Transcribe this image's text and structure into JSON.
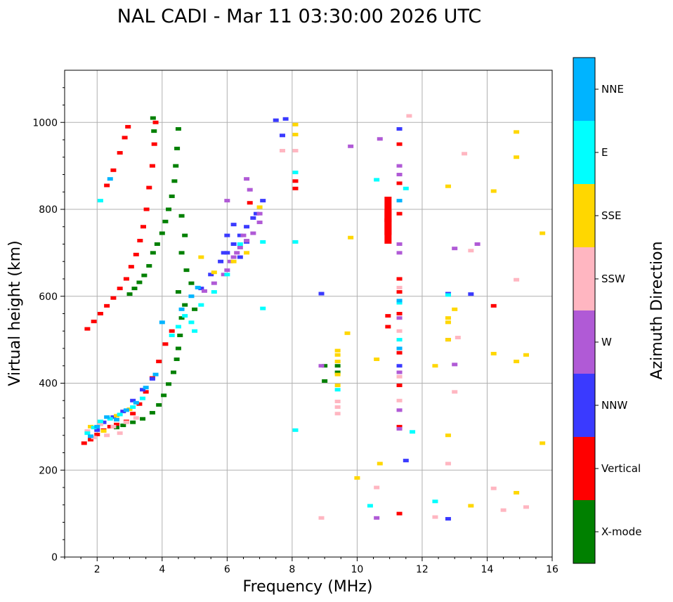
{
  "chart_data": {
    "type": "scatter",
    "title": "NAL CADI - Mar 11 03:30:00 2026 UTC",
    "xlabel": "Frequency (MHz)",
    "ylabel": "Virtual height (km)",
    "xlim": [
      1,
      16
    ],
    "ylim": [
      0,
      1120
    ],
    "xticks": [
      2,
      4,
      6,
      8,
      10,
      12,
      14,
      16
    ],
    "yticks": [
      0,
      200,
      400,
      600,
      800,
      1000
    ],
    "grid": true,
    "colorbar": {
      "label": "Azimuth Direction",
      "categories": [
        "X-mode",
        "Vertical",
        "NNW",
        "W",
        "SSW",
        "SSE",
        "E",
        "NNE"
      ],
      "colors": [
        "#008000",
        "#ff0000",
        "#3a3aff",
        "#b05ad6",
        "#ffb6c1",
        "#ffd700",
        "#00ffff",
        "#00b4ff"
      ]
    },
    "series": [
      {
        "name": "Vertical",
        "points": [
          [
            1.6,
            262
          ],
          [
            1.8,
            270
          ],
          [
            2.0,
            282
          ],
          [
            2.2,
            292
          ],
          [
            2.4,
            300
          ],
          [
            2.6,
            305
          ],
          [
            2.9,
            312
          ],
          [
            3.1,
            330
          ],
          [
            3.3,
            352
          ],
          [
            3.5,
            380
          ],
          [
            3.7,
            412
          ],
          [
            3.9,
            450
          ],
          [
            4.1,
            490
          ],
          [
            4.3,
            520
          ],
          [
            1.7,
            525
          ],
          [
            1.9,
            542
          ],
          [
            2.1,
            560
          ],
          [
            2.3,
            578
          ],
          [
            2.5,
            596
          ],
          [
            2.7,
            618
          ],
          [
            2.9,
            640
          ],
          [
            3.05,
            668
          ],
          [
            3.2,
            696
          ],
          [
            3.32,
            728
          ],
          [
            3.42,
            760
          ],
          [
            3.52,
            800
          ],
          [
            3.6,
            850
          ],
          [
            3.7,
            900
          ],
          [
            3.76,
            950
          ],
          [
            3.8,
            1000
          ],
          [
            2.3,
            855
          ],
          [
            2.5,
            890
          ],
          [
            2.7,
            930
          ],
          [
            2.85,
            965
          ],
          [
            2.95,
            990
          ],
          [
            10.95,
            800
          ],
          [
            10.95,
            770
          ],
          [
            10.95,
            750
          ],
          [
            10.95,
            555
          ],
          [
            10.95,
            530
          ],
          [
            11.3,
            950
          ],
          [
            11.3,
            860
          ],
          [
            11.3,
            790
          ],
          [
            11.3,
            640
          ],
          [
            11.3,
            610
          ],
          [
            11.3,
            560
          ],
          [
            11.3,
            470
          ],
          [
            11.3,
            395
          ],
          [
            11.3,
            300
          ],
          [
            11.3,
            100
          ],
          [
            8.1,
            865
          ],
          [
            8.1,
            848
          ],
          [
            6.7,
            815
          ],
          [
            14.2,
            578
          ]
        ]
      },
      {
        "name": "X-mode",
        "points": [
          [
            2.6,
            298
          ],
          [
            2.8,
            303
          ],
          [
            3.1,
            310
          ],
          [
            3.4,
            318
          ],
          [
            3.7,
            332
          ],
          [
            3.9,
            350
          ],
          [
            4.05,
            372
          ],
          [
            4.2,
            398
          ],
          [
            4.35,
            425
          ],
          [
            4.45,
            455
          ],
          [
            4.5,
            480
          ],
          [
            4.55,
            510
          ],
          [
            3.0,
            605
          ],
          [
            3.15,
            618
          ],
          [
            3.3,
            632
          ],
          [
            3.45,
            648
          ],
          [
            3.6,
            670
          ],
          [
            3.72,
            700
          ],
          [
            3.85,
            720
          ],
          [
            4.0,
            745
          ],
          [
            4.1,
            772
          ],
          [
            4.2,
            800
          ],
          [
            4.3,
            830
          ],
          [
            4.38,
            865
          ],
          [
            4.42,
            900
          ],
          [
            4.46,
            940
          ],
          [
            4.5,
            985
          ],
          [
            3.72,
            1010
          ],
          [
            3.75,
            980
          ],
          [
            4.6,
            785
          ],
          [
            4.7,
            740
          ],
          [
            4.6,
            700
          ],
          [
            4.75,
            660
          ],
          [
            4.9,
            630
          ],
          [
            4.5,
            610
          ],
          [
            4.7,
            580
          ],
          [
            5.0,
            570
          ],
          [
            4.6,
            550
          ],
          [
            9.0,
            405
          ],
          [
            9.0,
            440
          ],
          [
            9.4,
            440
          ],
          [
            9.4,
            425
          ]
        ]
      },
      {
        "name": "NNW",
        "points": [
          [
            2.0,
            292
          ],
          [
            2.2,
            310
          ],
          [
            2.5,
            322
          ],
          [
            2.8,
            335
          ],
          [
            3.1,
            360
          ],
          [
            3.4,
            385
          ],
          [
            3.7,
            410
          ],
          [
            5.2,
            618
          ],
          [
            5.5,
            650
          ],
          [
            5.8,
            680
          ],
          [
            6.0,
            700
          ],
          [
            6.2,
            720
          ],
          [
            6.4,
            740
          ],
          [
            6.6,
            760
          ],
          [
            6.8,
            780
          ],
          [
            6.2,
            765
          ],
          [
            6.0,
            740
          ],
          [
            5.9,
            700
          ],
          [
            6.4,
            690
          ],
          [
            6.6,
            725
          ],
          [
            6.9,
            790
          ],
          [
            7.1,
            820
          ],
          [
            7.5,
            1005
          ],
          [
            7.8,
            1008
          ],
          [
            7.7,
            970
          ],
          [
            8.9,
            606
          ],
          [
            11.3,
            985
          ],
          [
            11.3,
            440
          ],
          [
            11.5,
            222
          ],
          [
            12.8,
            606
          ],
          [
            12.8,
            88
          ],
          [
            13.5,
            605
          ]
        ]
      },
      {
        "name": "W",
        "points": [
          [
            6.0,
            660
          ],
          [
            6.2,
            690
          ],
          [
            6.4,
            712
          ],
          [
            6.6,
            728
          ],
          [
            6.8,
            745
          ],
          [
            7.0,
            770
          ],
          [
            6.5,
            740
          ],
          [
            6.3,
            700
          ],
          [
            6.1,
            680
          ],
          [
            5.9,
            650
          ],
          [
            5.6,
            630
          ],
          [
            5.3,
            612
          ],
          [
            6.0,
            820
          ],
          [
            6.6,
            870
          ],
          [
            6.7,
            845
          ],
          [
            7.0,
            790
          ],
          [
            8.9,
            440
          ],
          [
            11.3,
            900
          ],
          [
            11.3,
            880
          ],
          [
            11.3,
            720
          ],
          [
            11.3,
            700
          ],
          [
            11.3,
            550
          ],
          [
            11.3,
            425
          ],
          [
            11.3,
            338
          ],
          [
            11.3,
            295
          ],
          [
            10.7,
            962
          ],
          [
            9.8,
            945
          ],
          [
            13.0,
            710
          ],
          [
            13.7,
            720
          ],
          [
            13.0,
            443
          ],
          [
            12.8,
            500
          ],
          [
            10.6,
            90
          ]
        ]
      },
      {
        "name": "SSW",
        "points": [
          [
            1.7,
            290
          ],
          [
            1.9,
            275
          ],
          [
            2.1,
            305
          ],
          [
            2.3,
            280
          ],
          [
            2.5,
            300
          ],
          [
            2.7,
            285
          ],
          [
            2.9,
            310
          ],
          [
            3.2,
            320
          ],
          [
            9.4,
            358
          ],
          [
            9.4,
            345
          ],
          [
            9.4,
            330
          ],
          [
            7.7,
            935
          ],
          [
            8.1,
            935
          ],
          [
            11.6,
            1015
          ],
          [
            11.3,
            620
          ],
          [
            11.3,
            520
          ],
          [
            11.3,
            415
          ],
          [
            11.3,
            360
          ],
          [
            13.3,
            928
          ],
          [
            13.1,
            505
          ],
          [
            13.0,
            380
          ],
          [
            12.8,
            215
          ],
          [
            14.2,
            158
          ],
          [
            14.5,
            108
          ],
          [
            15.2,
            115
          ],
          [
            12.4,
            92
          ],
          [
            10.6,
            160
          ],
          [
            8.9,
            90
          ],
          [
            14.9,
            638
          ],
          [
            13.5,
            705
          ]
        ]
      },
      {
        "name": "SSE",
        "points": [
          [
            1.8,
            300
          ],
          [
            2.2,
            290
          ],
          [
            2.6,
            325
          ],
          [
            3.0,
            340
          ],
          [
            5.2,
            690
          ],
          [
            5.6,
            655
          ],
          [
            6.2,
            680
          ],
          [
            6.6,
            700
          ],
          [
            7.0,
            805
          ],
          [
            9.4,
            475
          ],
          [
            9.4,
            465
          ],
          [
            9.4,
            450
          ],
          [
            9.4,
            420
          ],
          [
            9.4,
            395
          ],
          [
            9.7,
            515
          ],
          [
            9.8,
            735
          ],
          [
            10.0,
            182
          ],
          [
            10.6,
            455
          ],
          [
            10.7,
            215
          ],
          [
            8.1,
            972
          ],
          [
            8.1,
            995
          ],
          [
            12.4,
            440
          ],
          [
            12.8,
            853
          ],
          [
            12.8,
            550
          ],
          [
            12.8,
            540
          ],
          [
            12.8,
            280
          ],
          [
            12.8,
            500
          ],
          [
            13.0,
            570
          ],
          [
            13.5,
            118
          ],
          [
            14.2,
            842
          ],
          [
            14.2,
            468
          ],
          [
            14.9,
            978
          ],
          [
            14.9,
            920
          ],
          [
            14.9,
            450
          ],
          [
            14.9,
            148
          ],
          [
            15.2,
            465
          ],
          [
            15.7,
            745
          ],
          [
            15.7,
            262
          ]
        ]
      },
      {
        "name": "E",
        "points": [
          [
            1.7,
            285
          ],
          [
            1.9,
            298
          ],
          [
            2.1,
            312
          ],
          [
            2.4,
            318
          ],
          [
            2.7,
            328
          ],
          [
            3.1,
            345
          ],
          [
            3.4,
            365
          ],
          [
            4.3,
            510
          ],
          [
            4.5,
            530
          ],
          [
            4.7,
            555
          ],
          [
            4.9,
            540
          ],
          [
            5.0,
            520
          ],
          [
            5.2,
            580
          ],
          [
            5.6,
            610
          ],
          [
            6.0,
            650
          ],
          [
            6.4,
            720
          ],
          [
            7.1,
            725
          ],
          [
            7.1,
            572
          ],
          [
            8.1,
            885
          ],
          [
            8.1,
            725
          ],
          [
            8.1,
            292
          ],
          [
            9.4,
            385
          ],
          [
            10.6,
            868
          ],
          [
            10.4,
            118
          ],
          [
            11.3,
            585
          ],
          [
            11.3,
            500
          ],
          [
            11.5,
            848
          ],
          [
            11.7,
            288
          ],
          [
            12.4,
            128
          ],
          [
            12.8,
            603
          ],
          [
            2.1,
            820
          ]
        ]
      },
      {
        "name": "NNE",
        "points": [
          [
            1.8,
            278
          ],
          [
            2.0,
            300
          ],
          [
            2.3,
            322
          ],
          [
            2.6,
            316
          ],
          [
            2.9,
            338
          ],
          [
            3.2,
            355
          ],
          [
            3.5,
            390
          ],
          [
            3.8,
            420
          ],
          [
            4.6,
            570
          ],
          [
            4.9,
            600
          ],
          [
            5.1,
            620
          ],
          [
            11.3,
            480
          ],
          [
            11.3,
            820
          ],
          [
            11.3,
            590
          ],
          [
            4.0,
            540
          ],
          [
            2.4,
            870
          ]
        ]
      }
    ]
  }
}
